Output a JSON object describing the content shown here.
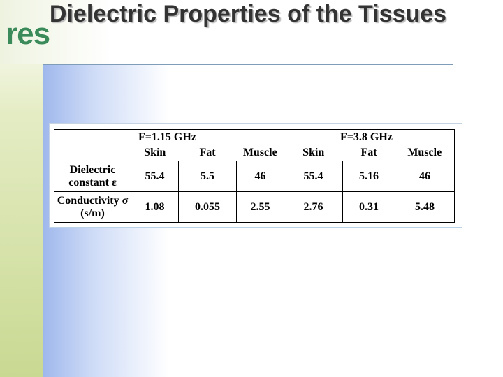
{
  "logo": "res",
  "title": "Dielectric Properties of the Tissues",
  "table": {
    "groups": [
      "F=1.15 GHz",
      "F=3.8 GHz"
    ],
    "columns": [
      "Skin",
      "Fat",
      "Muscle",
      "Skin",
      "Fat",
      "Muscle"
    ],
    "rows": [
      {
        "label": "Dielectric constant ε",
        "values": [
          55.4,
          5.5,
          46,
          55.4,
          5.16,
          46
        ]
      },
      {
        "label": "Conductivity σ (s/m)",
        "values": [
          1.08,
          0.055,
          2.55,
          2.76,
          0.31,
          5.48
        ]
      }
    ]
  }
}
